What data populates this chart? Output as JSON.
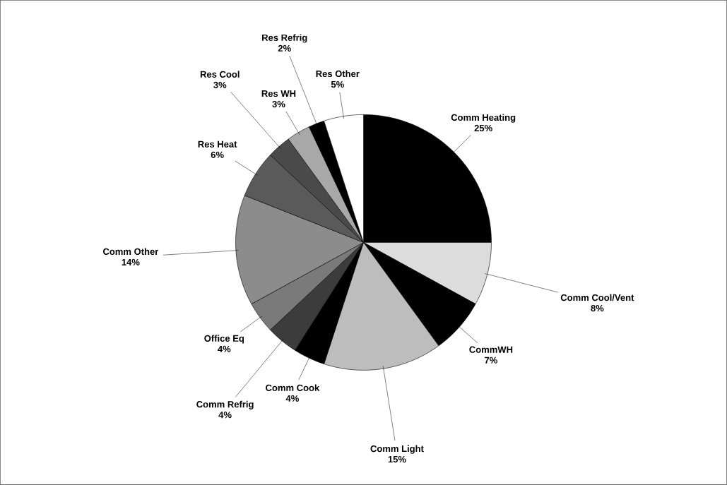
{
  "chart_data": {
    "type": "pie",
    "categories": [
      "Comm Heating",
      "Comm Cool/Vent",
      "CommWH",
      "Comm Light",
      "Comm Cook",
      "Comm Refrig",
      "Office Eq",
      "Comm Other",
      "Res Heat",
      "Res Cool",
      "Res WH",
      "Res Refrig",
      "Res Other"
    ],
    "values": [
      25,
      8,
      7,
      15,
      4,
      4,
      4,
      14,
      6,
      3,
      3,
      2,
      5
    ],
    "value_labels": [
      "25%",
      "8%",
      "7%",
      "15%",
      "4%",
      "4%",
      "4%",
      "14%",
      "6%",
      "3%",
      "3%",
      "2%",
      "5%"
    ],
    "colors": [
      "#000000",
      "#dcdcdc",
      "#000000",
      "#bdbdbd",
      "#000000",
      "#3c3c3c",
      "#7a7a7a",
      "#8c8c8c",
      "#5a5a5a",
      "#4a4a4a",
      "#a8a8a8",
      "#000000",
      "#ffffff"
    ]
  }
}
